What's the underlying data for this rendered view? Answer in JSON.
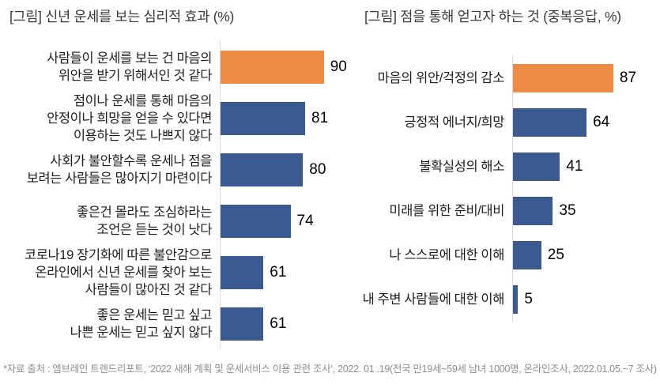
{
  "chart_data": [
    {
      "type": "bar",
      "orientation": "horizontal",
      "title": "[그림] 신년 운세를 보는 심리적 효과 (%)",
      "categories": [
        "사람들이 운세를 보는 건 마음의\n위안을 받기 위해서인 것 같다",
        "점이나 운세를 통해 마음의\n안정이나 희망을 얻을 수 있다면\n이용하는 것도 나쁘지 않다",
        "사회가 불안할수록 운세나 점을\n보려는 사람들은 많아지기 마련이다",
        "좋은건 몰라도 조심하라는\n조언은 듣는 것이 낫다",
        "코로나19 장기화에 따른 불안감으로\n온라인에서 신년 운세를 찾아 보는\n사람들이 많아진 것 같다",
        "좋은 운세는 믿고 싶고\n나쁜 운세는 믿고 싶지 않다"
      ],
      "values": [
        90,
        81,
        80,
        74,
        61,
        61
      ],
      "value_labels_shown": true,
      "xlim": [
        40,
        100
      ],
      "grid": false,
      "legend": false,
      "highlight_index": 0,
      "highlight_color": "#ED8B44",
      "bar_color": "#3B5A92",
      "axis_color": "#D9D9D9"
    },
    {
      "type": "bar",
      "orientation": "horizontal",
      "title": "[그림] 점을 통해 얻고자 하는 것 (중복응답, %)",
      "categories": [
        "마음의 위안/걱정의 감소",
        "긍정적 에너지/희망",
        "불확실성의 해소",
        "미래를 위한 준비/대비",
        "나 스스로에 대한 이해",
        "내 주변 사람들에 대한 이해"
      ],
      "values": [
        87,
        64,
        41,
        35,
        25,
        5
      ],
      "value_labels_shown": true,
      "xlim": [
        0,
        100
      ],
      "grid": false,
      "legend": false,
      "highlight_index": 0,
      "highlight_color": "#ED8B44",
      "bar_color": "#3B5A92",
      "axis_color": "#D9D9D9"
    }
  ],
  "footnote": "*자료 출처 : 엠브레인 트렌드리포트, ‘2022 새해 계획 및 운세서비스 이용 관련 조사’, 2022. 01 .19(전국 만19세~59세 남녀 1000명, 온라인조사, 2022.01.05.~7 조사)"
}
